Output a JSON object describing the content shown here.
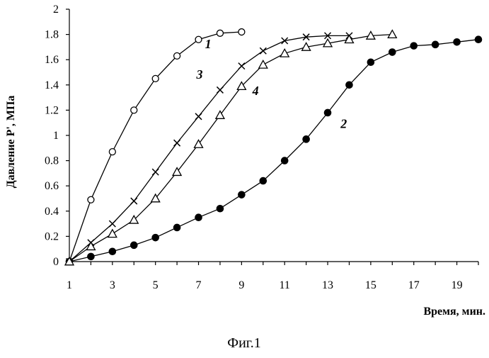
{
  "figure": {
    "caption": "Фиг.1"
  },
  "chart_data": {
    "type": "line",
    "title": "",
    "xlabel": "Время, мин.",
    "ylabel": "Давление P', МПа",
    "xlim": [
      1,
      20
    ],
    "ylim": [
      0,
      2
    ],
    "x_ticks": [
      1,
      3,
      5,
      7,
      9,
      11,
      13,
      15,
      17,
      19
    ],
    "y_ticks": [
      0,
      0.2,
      0.4,
      0.6,
      0.8,
      1,
      1.2,
      1.4,
      1.6,
      1.8,
      2
    ],
    "x_tick_labels": [
      "1",
      "3",
      "5",
      "7",
      "9",
      "11",
      "13",
      "15",
      "17",
      "19"
    ],
    "y_tick_labels": [
      "0",
      "0.2",
      "0.4",
      "0.6",
      "0.8",
      "1",
      "1.2",
      "1.4",
      "1.6",
      "1.8",
      "2"
    ],
    "grid": false,
    "series": [
      {
        "name": "1",
        "marker": "open-circle",
        "x": [
          1,
          2,
          3,
          4,
          5,
          6,
          7,
          8,
          9
        ],
        "y": [
          0,
          0.49,
          0.87,
          1.2,
          1.45,
          1.63,
          1.76,
          1.81,
          1.82
        ]
      },
      {
        "name": "2",
        "marker": "filled-circle",
        "x": [
          1,
          2,
          3,
          4,
          5,
          6,
          7,
          8,
          9,
          10,
          11,
          12,
          13,
          14,
          15,
          16,
          17,
          18,
          19,
          20
        ],
        "y": [
          0,
          0.04,
          0.08,
          0.13,
          0.19,
          0.27,
          0.35,
          0.42,
          0.53,
          0.64,
          0.8,
          0.97,
          1.18,
          1.4,
          1.58,
          1.66,
          1.71,
          1.72,
          1.74,
          1.76
        ]
      },
      {
        "name": "3",
        "marker": "cross",
        "x": [
          1,
          2,
          3,
          4,
          5,
          6,
          7,
          8,
          9,
          10,
          11,
          12,
          13,
          14
        ],
        "y": [
          0,
          0.15,
          0.3,
          0.48,
          0.71,
          0.94,
          1.15,
          1.36,
          1.55,
          1.67,
          1.75,
          1.78,
          1.79,
          1.79
        ]
      },
      {
        "name": "4",
        "marker": "open-triangle",
        "x": [
          1,
          2,
          3,
          4,
          5,
          6,
          7,
          8,
          9,
          10,
          11,
          12,
          13,
          14,
          15,
          16
        ],
        "y": [
          0,
          0.12,
          0.22,
          0.33,
          0.5,
          0.71,
          0.93,
          1.16,
          1.39,
          1.56,
          1.65,
          1.7,
          1.73,
          1.76,
          1.79,
          1.8
        ]
      }
    ]
  }
}
